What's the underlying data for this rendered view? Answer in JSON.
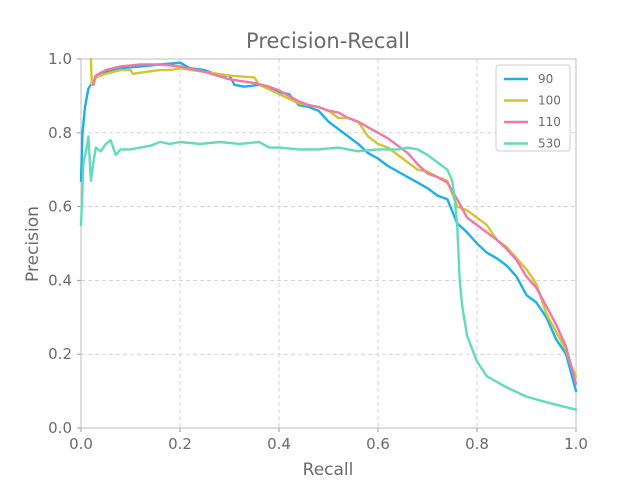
{
  "chart_data": {
    "type": "line",
    "title": "Precision-Recall",
    "xlabel": "Recall",
    "ylabel": "Precision",
    "xlim": [
      0.0,
      1.0
    ],
    "ylim": [
      0.0,
      1.0
    ],
    "xticks": [
      "0.0",
      "0.2",
      "0.4",
      "0.6",
      "0.8",
      "1.0"
    ],
    "yticks": [
      "0.0",
      "0.2",
      "0.4",
      "0.6",
      "0.8",
      "1.0"
    ],
    "grid": true,
    "legend_position": "top-right",
    "series": [
      {
        "name": "90",
        "color": "#1ab0ec",
        "points": [
          [
            0.0,
            0.67
          ],
          [
            0.003,
            0.8
          ],
          [
            0.008,
            0.87
          ],
          [
            0.015,
            0.92
          ],
          [
            0.03,
            0.95
          ],
          [
            0.05,
            0.965
          ],
          [
            0.08,
            0.975
          ],
          [
            0.12,
            0.98
          ],
          [
            0.16,
            0.985
          ],
          [
            0.2,
            0.99
          ],
          [
            0.22,
            0.975
          ],
          [
            0.25,
            0.97
          ],
          [
            0.28,
            0.955
          ],
          [
            0.3,
            0.955
          ],
          [
            0.31,
            0.93
          ],
          [
            0.33,
            0.925
          ],
          [
            0.36,
            0.93
          ],
          [
            0.38,
            0.92
          ],
          [
            0.4,
            0.91
          ],
          [
            0.42,
            0.905
          ],
          [
            0.44,
            0.875
          ],
          [
            0.46,
            0.87
          ],
          [
            0.48,
            0.86
          ],
          [
            0.5,
            0.83
          ],
          [
            0.52,
            0.81
          ],
          [
            0.54,
            0.79
          ],
          [
            0.56,
            0.77
          ],
          [
            0.58,
            0.745
          ],
          [
            0.6,
            0.73
          ],
          [
            0.62,
            0.71
          ],
          [
            0.64,
            0.695
          ],
          [
            0.66,
            0.68
          ],
          [
            0.68,
            0.665
          ],
          [
            0.7,
            0.65
          ],
          [
            0.72,
            0.63
          ],
          [
            0.74,
            0.62
          ],
          [
            0.76,
            0.555
          ],
          [
            0.78,
            0.53
          ],
          [
            0.8,
            0.5
          ],
          [
            0.82,
            0.475
          ],
          [
            0.84,
            0.46
          ],
          [
            0.86,
            0.44
          ],
          [
            0.88,
            0.41
          ],
          [
            0.9,
            0.36
          ],
          [
            0.92,
            0.34
          ],
          [
            0.94,
            0.3
          ],
          [
            0.96,
            0.24
          ],
          [
            0.98,
            0.2
          ],
          [
            0.99,
            0.15
          ],
          [
            1.0,
            0.1
          ]
        ]
      },
      {
        "name": "100",
        "color": "#d4c430",
        "points": [
          [
            0.02,
            1.0
          ],
          [
            0.022,
            0.93
          ],
          [
            0.03,
            0.95
          ],
          [
            0.05,
            0.96
          ],
          [
            0.08,
            0.97
          ],
          [
            0.1,
            0.97
          ],
          [
            0.105,
            0.96
          ],
          [
            0.13,
            0.965
          ],
          [
            0.16,
            0.97
          ],
          [
            0.18,
            0.97
          ],
          [
            0.2,
            0.975
          ],
          [
            0.25,
            0.965
          ],
          [
            0.3,
            0.955
          ],
          [
            0.35,
            0.95
          ],
          [
            0.36,
            0.93
          ],
          [
            0.4,
            0.905
          ],
          [
            0.44,
            0.88
          ],
          [
            0.48,
            0.87
          ],
          [
            0.5,
            0.86
          ],
          [
            0.52,
            0.84
          ],
          [
            0.54,
            0.84
          ],
          [
            0.56,
            0.83
          ],
          [
            0.58,
            0.79
          ],
          [
            0.6,
            0.77
          ],
          [
            0.62,
            0.76
          ],
          [
            0.64,
            0.74
          ],
          [
            0.66,
            0.72
          ],
          [
            0.68,
            0.7
          ],
          [
            0.7,
            0.695
          ],
          [
            0.72,
            0.68
          ],
          [
            0.74,
            0.67
          ],
          [
            0.76,
            0.6
          ],
          [
            0.78,
            0.59
          ],
          [
            0.8,
            0.57
          ],
          [
            0.82,
            0.55
          ],
          [
            0.84,
            0.51
          ],
          [
            0.86,
            0.49
          ],
          [
            0.88,
            0.46
          ],
          [
            0.9,
            0.43
          ],
          [
            0.92,
            0.39
          ],
          [
            0.94,
            0.31
          ],
          [
            0.96,
            0.26
          ],
          [
            0.98,
            0.21
          ],
          [
            0.99,
            0.17
          ],
          [
            1.0,
            0.14
          ]
        ]
      },
      {
        "name": "110",
        "color": "#f077a8",
        "points": [
          [
            0.025,
            0.93
          ],
          [
            0.03,
            0.955
          ],
          [
            0.05,
            0.97
          ],
          [
            0.08,
            0.98
          ],
          [
            0.12,
            0.985
          ],
          [
            0.16,
            0.985
          ],
          [
            0.2,
            0.98
          ],
          [
            0.25,
            0.965
          ],
          [
            0.3,
            0.945
          ],
          [
            0.35,
            0.935
          ],
          [
            0.38,
            0.925
          ],
          [
            0.4,
            0.915
          ],
          [
            0.42,
            0.9
          ],
          [
            0.44,
            0.885
          ],
          [
            0.46,
            0.875
          ],
          [
            0.48,
            0.87
          ],
          [
            0.5,
            0.86
          ],
          [
            0.52,
            0.855
          ],
          [
            0.54,
            0.84
          ],
          [
            0.56,
            0.83
          ],
          [
            0.58,
            0.815
          ],
          [
            0.6,
            0.8
          ],
          [
            0.62,
            0.785
          ],
          [
            0.64,
            0.765
          ],
          [
            0.66,
            0.745
          ],
          [
            0.68,
            0.715
          ],
          [
            0.7,
            0.69
          ],
          [
            0.72,
            0.68
          ],
          [
            0.74,
            0.665
          ],
          [
            0.76,
            0.62
          ],
          [
            0.78,
            0.57
          ],
          [
            0.8,
            0.55
          ],
          [
            0.82,
            0.53
          ],
          [
            0.84,
            0.51
          ],
          [
            0.86,
            0.485
          ],
          [
            0.88,
            0.455
          ],
          [
            0.9,
            0.41
          ],
          [
            0.92,
            0.38
          ],
          [
            0.94,
            0.33
          ],
          [
            0.96,
            0.28
          ],
          [
            0.98,
            0.22
          ],
          [
            0.99,
            0.17
          ],
          [
            1.0,
            0.12
          ]
        ]
      },
      {
        "name": "530",
        "color": "#63dbb8",
        "points": [
          [
            0.0,
            0.55
          ],
          [
            0.005,
            0.72
          ],
          [
            0.01,
            0.75
          ],
          [
            0.015,
            0.79
          ],
          [
            0.02,
            0.67
          ],
          [
            0.025,
            0.72
          ],
          [
            0.03,
            0.76
          ],
          [
            0.04,
            0.75
          ],
          [
            0.05,
            0.77
          ],
          [
            0.06,
            0.78
          ],
          [
            0.07,
            0.74
          ],
          [
            0.08,
            0.755
          ],
          [
            0.1,
            0.755
          ],
          [
            0.12,
            0.76
          ],
          [
            0.14,
            0.765
          ],
          [
            0.16,
            0.775
          ],
          [
            0.18,
            0.77
          ],
          [
            0.2,
            0.775
          ],
          [
            0.24,
            0.77
          ],
          [
            0.28,
            0.775
          ],
          [
            0.32,
            0.77
          ],
          [
            0.36,
            0.775
          ],
          [
            0.38,
            0.76
          ],
          [
            0.4,
            0.76
          ],
          [
            0.44,
            0.755
          ],
          [
            0.48,
            0.755
          ],
          [
            0.52,
            0.76
          ],
          [
            0.56,
            0.75
          ],
          [
            0.6,
            0.755
          ],
          [
            0.64,
            0.755
          ],
          [
            0.66,
            0.76
          ],
          [
            0.68,
            0.755
          ],
          [
            0.7,
            0.74
          ],
          [
            0.72,
            0.72
          ],
          [
            0.74,
            0.7
          ],
          [
            0.75,
            0.67
          ],
          [
            0.755,
            0.62
          ],
          [
            0.76,
            0.55
          ],
          [
            0.765,
            0.4
          ],
          [
            0.77,
            0.33
          ],
          [
            0.78,
            0.25
          ],
          [
            0.8,
            0.18
          ],
          [
            0.82,
            0.14
          ],
          [
            0.86,
            0.11
          ],
          [
            0.9,
            0.085
          ],
          [
            0.94,
            0.07
          ],
          [
            0.97,
            0.06
          ],
          [
            1.0,
            0.05
          ]
        ]
      }
    ]
  }
}
